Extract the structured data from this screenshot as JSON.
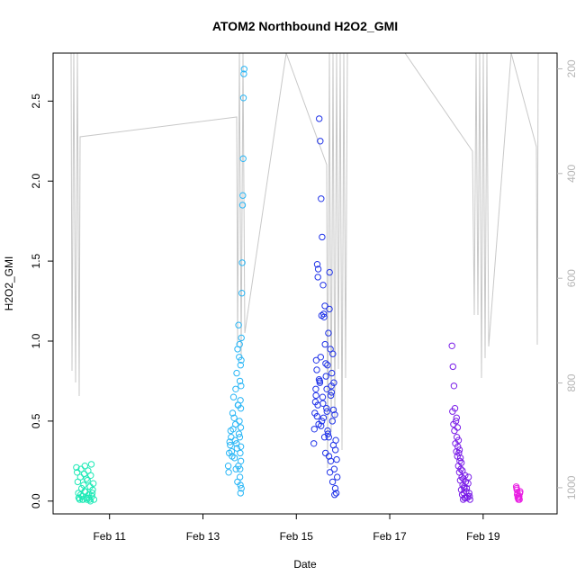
{
  "chart_data": {
    "type": "scatter",
    "title": "ATOM2 Northbound H2O2_GMI",
    "xlabel": "Date",
    "ylabel": "H2O2_GMI",
    "xlim": [
      "2017-02-09T19:00",
      "2017-02-20T14:00"
    ],
    "ylim": [
      -0.08,
      2.8
    ],
    "x_ticks": [
      {
        "date": "2017-02-11",
        "label": "Feb 11"
      },
      {
        "date": "2017-02-13",
        "label": "Feb 13"
      },
      {
        "date": "2017-02-15",
        "label": "Feb 15"
      },
      {
        "date": "2017-02-17",
        "label": "Feb 17"
      },
      {
        "date": "2017-02-19",
        "label": "Feb 19"
      }
    ],
    "y_ticks": [
      0.0,
      0.5,
      1.0,
      1.5,
      2.0,
      2.5
    ],
    "y_tick_labels": [
      "0.0",
      "0.5",
      "1.0",
      "1.5",
      "2.0",
      "2.5"
    ],
    "right_axis": {
      "quantity": "pressure",
      "reversed": true,
      "ylim": [
        1050,
        170
      ],
      "ticks": [
        200,
        400,
        600,
        800,
        1000
      ],
      "tick_labels": [
        "200",
        "400",
        "600",
        "800",
        "1000"
      ],
      "color": "#b5b5b5"
    },
    "grid": false,
    "legend": "none",
    "point_style": "open-circle",
    "profile_line_color": "#c8c8c8",
    "series": [
      {
        "color": "#1de9b6",
        "x": [
          "2017-02-10T07:00",
          "2017-02-10T07:20",
          "2017-02-10T07:40",
          "2017-02-10T08:00",
          "2017-02-10T08:20",
          "2017-02-10T08:40",
          "2017-02-10T09:00",
          "2017-02-10T09:20",
          "2017-02-10T09:40",
          "2017-02-10T10:00",
          "2017-02-10T10:20",
          "2017-02-10T10:40",
          "2017-02-10T11:00",
          "2017-02-10T11:20",
          "2017-02-10T11:40",
          "2017-02-10T12:00",
          "2017-02-10T12:20",
          "2017-02-10T12:40",
          "2017-02-10T13:00",
          "2017-02-10T13:20",
          "2017-02-10T13:40",
          "2017-02-10T14:00",
          "2017-02-10T14:20",
          "2017-02-10T14:40",
          "2017-02-10T15:00",
          "2017-02-10T15:20",
          "2017-02-10T15:40",
          "2017-02-10T08:10",
          "2017-02-10T09:10",
          "2017-02-10T10:10",
          "2017-02-10T11:10",
          "2017-02-10T12:10",
          "2017-02-10T13:10",
          "2017-02-10T14:10",
          "2017-02-10T15:10",
          "2017-02-10T16:00"
        ],
        "y": [
          0.21,
          0.18,
          0.12,
          0.05,
          0.02,
          0.01,
          0.15,
          0.2,
          0.08,
          0.03,
          0.01,
          0.1,
          0.17,
          0.22,
          0.06,
          0.02,
          0.01,
          0.13,
          0.19,
          0.04,
          0.01,
          0.09,
          0.16,
          0.23,
          0.03,
          0.07,
          0.11,
          0.02,
          0.04,
          0.01,
          0.06,
          0.14,
          0.02,
          0.0,
          0.05,
          0.01
        ]
      },
      {
        "color": "#29b6f6",
        "x": [
          "2017-02-13T13:00",
          "2017-02-13T13:30",
          "2017-02-13T14:00",
          "2017-02-13T14:30",
          "2017-02-13T15:00",
          "2017-02-13T15:30",
          "2017-02-13T16:00",
          "2017-02-13T16:30",
          "2017-02-13T17:00",
          "2017-02-13T17:30",
          "2017-02-13T18:00",
          "2017-02-13T18:30",
          "2017-02-13T19:00",
          "2017-02-13T19:30",
          "2017-02-13T13:15",
          "2017-02-13T13:45",
          "2017-02-13T14:15",
          "2017-02-13T14:45",
          "2017-02-13T15:15",
          "2017-02-13T15:45",
          "2017-02-13T16:15",
          "2017-02-13T16:45",
          "2017-02-13T17:15",
          "2017-02-13T17:45",
          "2017-02-13T18:15",
          "2017-02-13T18:45",
          "2017-02-13T19:15",
          "2017-02-13T19:45",
          "2017-02-13T16:50",
          "2017-02-13T17:20",
          "2017-02-13T17:50",
          "2017-02-13T18:20",
          "2017-02-13T18:50",
          "2017-02-13T19:20",
          "2017-02-13T19:00",
          "2017-02-13T18:40",
          "2017-02-13T18:10",
          "2017-02-13T18:55",
          "2017-02-13T19:10",
          "2017-02-13T19:05",
          "2017-02-13T19:15",
          "2017-02-13T19:20",
          "2017-02-13T19:25",
          "2017-02-13T19:25",
          "2017-02-13T19:30",
          "2017-02-13T19:35",
          "2017-02-13T19:40",
          "2017-02-13T19:45",
          "2017-02-13T20:00",
          "2017-02-13T20:10",
          "2017-02-13T20:20",
          "2017-02-13T20:30",
          "2017-02-13T20:40",
          "2017-02-13T20:50",
          "2017-02-13T21:00",
          "2017-02-13T21:10"
        ],
        "y": [
          0.22,
          0.3,
          0.35,
          0.4,
          0.28,
          0.45,
          0.52,
          0.38,
          0.2,
          0.33,
          0.6,
          0.42,
          0.15,
          0.25,
          0.18,
          0.37,
          0.44,
          0.31,
          0.55,
          0.65,
          0.27,
          0.48,
          0.36,
          0.12,
          0.22,
          0.5,
          0.63,
          0.08,
          0.7,
          0.8,
          0.95,
          1.1,
          0.98,
          0.85,
          0.75,
          0.9,
          0.6,
          0.4,
          0.3,
          0.2,
          0.1,
          0.05,
          0.58,
          0.46,
          0.34,
          0.72,
          0.88,
          1.02,
          1.3,
          1.49,
          1.85,
          1.91,
          2.14,
          2.52,
          2.67,
          2.7
        ]
      },
      {
        "color": "#2134e8",
        "x": [
          "2017-02-15T09:00",
          "2017-02-15T09:30",
          "2017-02-15T10:00",
          "2017-02-15T10:30",
          "2017-02-15T11:00",
          "2017-02-15T11:30",
          "2017-02-15T12:00",
          "2017-02-15T12:30",
          "2017-02-15T13:00",
          "2017-02-15T13:30",
          "2017-02-15T14:00",
          "2017-02-15T14:30",
          "2017-02-15T15:00",
          "2017-02-15T15:30",
          "2017-02-15T16:00",
          "2017-02-15T16:30",
          "2017-02-15T17:00",
          "2017-02-15T17:30",
          "2017-02-15T18:00",
          "2017-02-15T18:30",
          "2017-02-15T19:00",
          "2017-02-15T19:30",
          "2017-02-15T20:00",
          "2017-02-15T20:30",
          "2017-02-15T21:00",
          "2017-02-15T09:15",
          "2017-02-15T09:45",
          "2017-02-15T10:15",
          "2017-02-15T10:45",
          "2017-02-15T11:15",
          "2017-02-15T11:45",
          "2017-02-15T12:15",
          "2017-02-15T12:45",
          "2017-02-15T13:15",
          "2017-02-15T13:45",
          "2017-02-15T14:15",
          "2017-02-15T14:45",
          "2017-02-15T15:15",
          "2017-02-15T15:45",
          "2017-02-15T16:15",
          "2017-02-15T16:45",
          "2017-02-15T17:15",
          "2017-02-15T17:45",
          "2017-02-15T18:15",
          "2017-02-15T18:45",
          "2017-02-15T19:15",
          "2017-02-15T19:45",
          "2017-02-15T20:15",
          "2017-02-15T20:45",
          "2017-02-15T10:05",
          "2017-02-15T11:05",
          "2017-02-15T12:05",
          "2017-02-15T13:05",
          "2017-02-15T14:05",
          "2017-02-15T15:05",
          "2017-02-15T16:05",
          "2017-02-15T17:05",
          "2017-02-15T18:05",
          "2017-02-15T19:05",
          "2017-02-15T20:05",
          "2017-02-15T10:40",
          "2017-02-15T11:40",
          "2017-02-15T12:40",
          "2017-02-15T13:40",
          "2017-02-15T14:40",
          "2017-02-15T15:40",
          "2017-02-15T16:40",
          "2017-02-15T17:40",
          "2017-02-15T18:40",
          "2017-02-15T19:40"
        ],
        "y": [
          0.36,
          0.55,
          0.7,
          0.82,
          0.6,
          0.48,
          0.75,
          0.9,
          1.16,
          0.65,
          0.52,
          0.4,
          0.3,
          0.58,
          0.85,
          1.05,
          1.2,
          0.95,
          0.72,
          0.5,
          0.35,
          0.2,
          0.08,
          0.05,
          0.15,
          0.45,
          0.62,
          0.88,
          1.48,
          1.45,
          2.39,
          2.25,
          1.89,
          1.65,
          1.35,
          1.15,
          0.98,
          0.78,
          0.56,
          0.42,
          0.28,
          0.18,
          0.66,
          0.8,
          0.92,
          0.74,
          0.54,
          0.38,
          0.26,
          0.66,
          1.4,
          0.74,
          0.5,
          1.17,
          0.86,
          0.44,
          1.43,
          0.68,
          0.57,
          0.32,
          0.53,
          0.76,
          0.47,
          0.61,
          1.22,
          0.7,
          0.4,
          0.25,
          0.12,
          0.04
        ]
      },
      {
        "color": "#7a1de8",
        "x": [
          "2017-02-18T08:00",
          "2017-02-18T08:30",
          "2017-02-18T09:00",
          "2017-02-18T09:30",
          "2017-02-18T10:00",
          "2017-02-18T10:30",
          "2017-02-18T11:00",
          "2017-02-18T11:30",
          "2017-02-18T12:00",
          "2017-02-18T12:30",
          "2017-02-18T13:00",
          "2017-02-18T13:30",
          "2017-02-18T14:00",
          "2017-02-18T14:30",
          "2017-02-18T15:00",
          "2017-02-18T15:30",
          "2017-02-18T16:00",
          "2017-02-18T16:30",
          "2017-02-18T08:15",
          "2017-02-18T08:45",
          "2017-02-18T09:15",
          "2017-02-18T09:45",
          "2017-02-18T10:15",
          "2017-02-18T10:45",
          "2017-02-18T11:15",
          "2017-02-18T11:45",
          "2017-02-18T12:15",
          "2017-02-18T12:45",
          "2017-02-18T13:15",
          "2017-02-18T13:45",
          "2017-02-18T14:15",
          "2017-02-18T14:45",
          "2017-02-18T15:15",
          "2017-02-18T15:45",
          "2017-02-18T16:15",
          "2017-02-18T16:45",
          "2017-02-18T17:00",
          "2017-02-18T17:15",
          "2017-02-18T10:20",
          "2017-02-18T10:50",
          "2017-02-18T11:20",
          "2017-02-18T11:50",
          "2017-02-18T12:20",
          "2017-02-18T12:50",
          "2017-02-18T13:20",
          "2017-02-18T13:50",
          "2017-02-18T14:20",
          "2017-02-18T14:50"
        ],
        "y": [
          0.97,
          0.84,
          0.72,
          0.58,
          0.5,
          0.4,
          0.34,
          0.3,
          0.25,
          0.2,
          0.15,
          0.1,
          0.05,
          0.02,
          0.12,
          0.08,
          0.03,
          0.15,
          0.56,
          0.48,
          0.44,
          0.36,
          0.31,
          0.28,
          0.22,
          0.18,
          0.13,
          0.07,
          0.04,
          0.01,
          0.09,
          0.16,
          0.06,
          0.02,
          0.11,
          0.05,
          0.03,
          0.01,
          0.52,
          0.46,
          0.38,
          0.32,
          0.27,
          0.24,
          0.19,
          0.14,
          0.08,
          0.02
        ]
      },
      {
        "color": "#e91de3",
        "x": [
          "2017-02-19T17:00",
          "2017-02-19T17:20",
          "2017-02-19T17:40",
          "2017-02-19T18:00",
          "2017-02-19T18:20",
          "2017-02-19T18:40",
          "2017-02-19T19:00",
          "2017-02-19T17:10",
          "2017-02-19T17:30",
          "2017-02-19T17:50",
          "2017-02-19T18:10",
          "2017-02-19T18:30",
          "2017-02-19T18:50"
        ],
        "y": [
          0.09,
          0.07,
          0.05,
          0.03,
          0.02,
          0.01,
          0.06,
          0.08,
          0.04,
          0.02,
          0.01,
          0.03,
          0.05
        ]
      }
    ]
  }
}
